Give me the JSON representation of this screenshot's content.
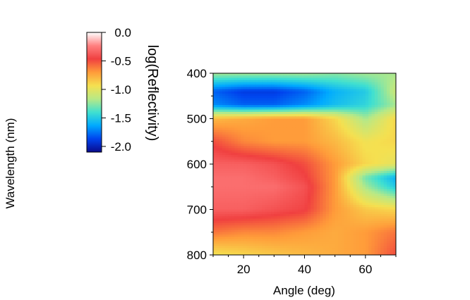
{
  "chart_data": {
    "type": "heatmap",
    "xlabel": "Angle (deg)",
    "ylabel": "Wavelength (nm)",
    "colorbar_label": "log(Reflectivity)",
    "xlim": [
      10,
      70
    ],
    "ylim": [
      800,
      400
    ],
    "x_ticks": [
      20,
      40,
      60
    ],
    "x_tick_labels": [
      "20",
      "40",
      "60"
    ],
    "y_ticks": [
      400,
      500,
      600,
      700,
      800
    ],
    "y_tick_labels": [
      "400",
      "500",
      "600",
      "700",
      "800"
    ],
    "colorbar_range": [
      -2.1,
      0.0
    ],
    "colorbar_ticks": [
      0.0,
      -0.5,
      -1.0,
      -1.5,
      -2.0
    ],
    "colorbar_tick_labels": [
      "0.0",
      "-0.5",
      "-1.0",
      "-1.5",
      "-2.0"
    ],
    "colormap": [
      "#0a0a8c",
      "#0044ee",
      "#00aaff",
      "#40e0d0",
      "#b8e986",
      "#f5e050",
      "#ff9c3a",
      "#f04040",
      "#ff8080",
      "#ffffff"
    ],
    "x": [
      10,
      20,
      30,
      40,
      50,
      60,
      70
    ],
    "y": [
      400,
      440,
      470,
      500,
      550,
      600,
      630,
      650,
      700,
      750,
      800
    ],
    "z": [
      [
        -1.2,
        -1.2,
        -1.2,
        -1.2,
        -1.25,
        -1.2,
        -1.2
      ],
      [
        -1.8,
        -1.9,
        -1.9,
        -1.8,
        -1.6,
        -1.5,
        -1.1
      ],
      [
        -1.7,
        -1.8,
        -1.8,
        -1.7,
        -1.55,
        -1.45,
        -1.2
      ],
      [
        -0.8,
        -0.75,
        -0.7,
        -0.7,
        -0.9,
        -1.2,
        -0.9
      ],
      [
        -0.5,
        -0.65,
        -0.7,
        -0.7,
        -0.8,
        -0.95,
        -0.9
      ],
      [
        -0.35,
        -0.35,
        -0.4,
        -0.5,
        -0.7,
        -0.9,
        -1.0
      ],
      [
        -0.3,
        -0.3,
        -0.35,
        -0.45,
        -0.7,
        -1.3,
        -1.6
      ],
      [
        -0.3,
        -0.3,
        -0.3,
        -0.4,
        -0.7,
        -1.2,
        -1.5
      ],
      [
        -0.35,
        -0.35,
        -0.4,
        -0.45,
        -0.7,
        -0.85,
        -0.9
      ],
      [
        -0.6,
        -0.65,
        -0.65,
        -0.7,
        -0.75,
        -0.7,
        -0.6
      ],
      [
        -0.95,
        -0.9,
        -0.85,
        -0.8,
        -0.75,
        -0.7,
        -0.5
      ]
    ]
  }
}
